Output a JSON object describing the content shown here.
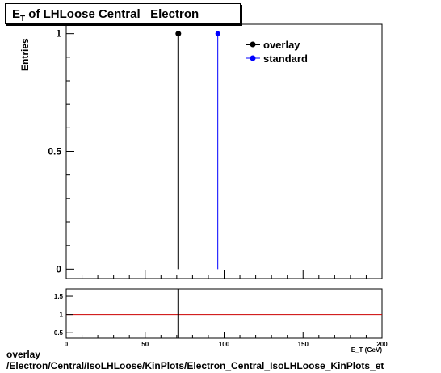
{
  "title": {
    "main": "E",
    "sub": "T",
    "rest": " of LHLoose Central   Electron"
  },
  "chart_data": {
    "type": "line",
    "ylabel": "Entries",
    "xlabel": "E_T (GeV)",
    "xlim": [
      0,
      200
    ],
    "ylim": [
      -0.04,
      1.04
    ],
    "yticks": [
      {
        "v": 0,
        "label": "0"
      },
      {
        "v": 0.5,
        "label": "0.5"
      },
      {
        "v": 1,
        "label": "1"
      }
    ],
    "series": [
      {
        "name": "overlay",
        "color": "#000000",
        "x": [
          71
        ],
        "y": [
          1
        ]
      },
      {
        "name": "standard",
        "color": "#0000ff",
        "x": [
          96
        ],
        "y": [
          1
        ]
      }
    ],
    "legend_position": "top-right",
    "ratio": {
      "ylim": [
        0.35,
        1.7
      ],
      "yticks": [
        {
          "v": 0.5,
          "label": "0.5"
        },
        {
          "v": 1,
          "label": "1"
        },
        {
          "v": 1.5,
          "label": "1.5"
        }
      ],
      "xticks": [
        {
          "v": 0,
          "label": "0"
        },
        {
          "v": 50,
          "label": "50"
        },
        {
          "v": 100,
          "label": "100"
        },
        {
          "v": 150,
          "label": "150"
        },
        {
          "v": 200,
          "label": "200"
        }
      ],
      "reference_line": 1,
      "reference_color": "#cc0000",
      "marker_x": 71
    }
  },
  "footer": {
    "line1": "overlay",
    "line2": "/Electron/Central/IsoLHLoose/KinPlots/Electron_Central_IsoLHLoose_KinPlots_et"
  }
}
